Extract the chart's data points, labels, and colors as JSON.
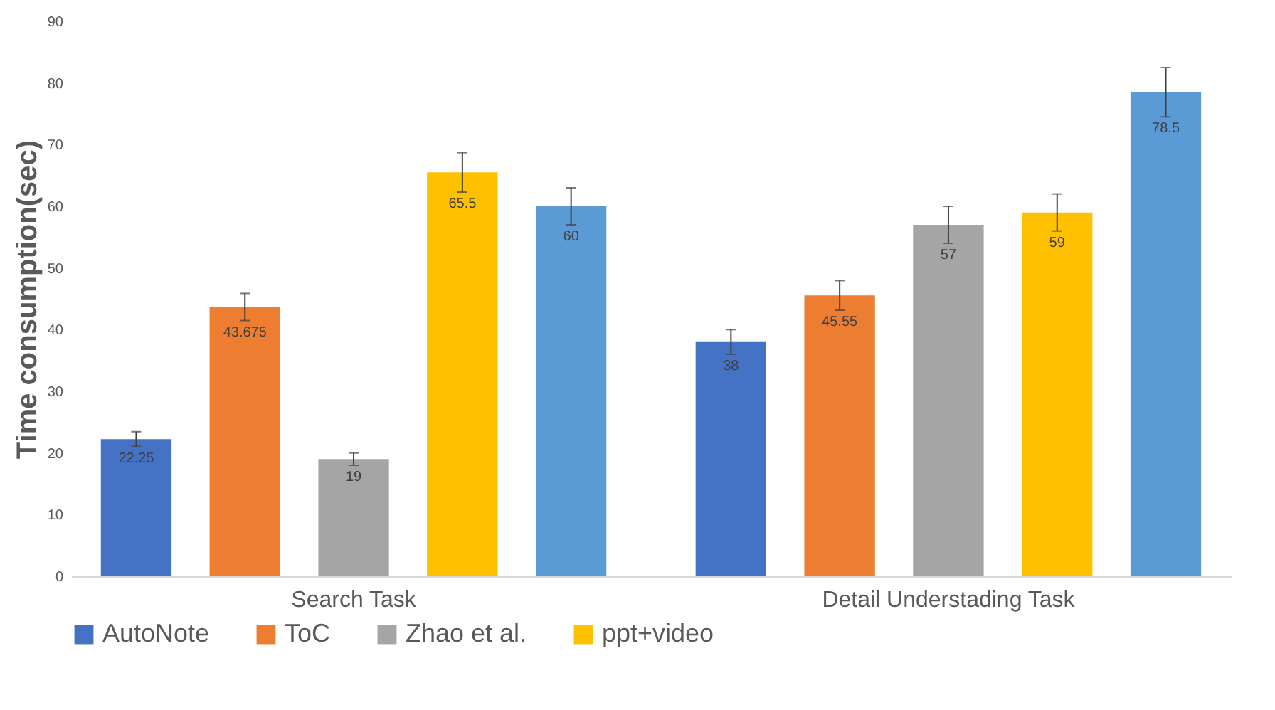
{
  "chart_data": {
    "type": "bar",
    "ylabel": "Time consumption(sec)",
    "categories": [
      "Search Task",
      "Detail Understading Task"
    ],
    "series": [
      {
        "name": "AutoNote",
        "color": "#4472c4",
        "values": [
          22.25,
          38
        ],
        "errors": [
          1.2,
          2
        ]
      },
      {
        "name": "ToC",
        "color": "#ed7d31",
        "values": [
          43.675,
          45.55
        ],
        "errors": [
          2.2,
          2.4
        ]
      },
      {
        "name": "Zhao et al.",
        "color": "#a5a5a5",
        "values": [
          19,
          57
        ],
        "errors": [
          1,
          3
        ]
      },
      {
        "name": "ppt+video",
        "color": "#ffc000",
        "values": [
          65.5,
          59
        ],
        "errors": [
          3.2,
          3
        ]
      },
      {
        "color": "#5b9bd5",
        "values": [
          60,
          78.5
        ],
        "errors": [
          3,
          4
        ]
      }
    ],
    "ylim": [
      0,
      90
    ],
    "yticks": [
      0,
      10,
      20,
      30,
      40,
      50,
      60,
      70,
      80,
      90
    ],
    "grid": false,
    "legend": "bottom",
    "data_labels": true
  }
}
